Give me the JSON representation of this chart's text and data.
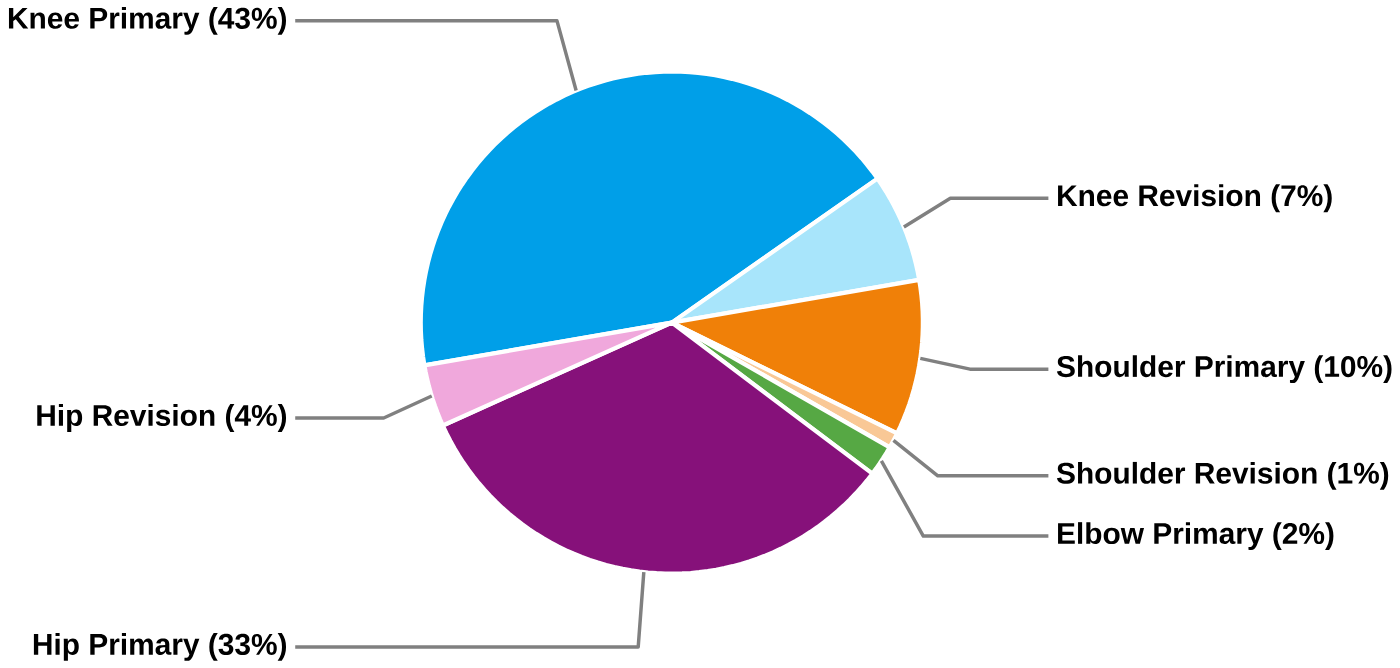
{
  "chart_data": {
    "type": "pie",
    "categories": [
      "Knee Primary (43%)",
      "Knee Revision (7%)",
      "Shoulder Primary (10%)",
      "Shoulder Revision (1%)",
      "Elbow Primary (2%)",
      "Hip Primary (33%)",
      "Hip Revision (4%)"
    ],
    "values": [
      43,
      7,
      10,
      1,
      2,
      33,
      4
    ],
    "colors": [
      "#009fe8",
      "#a8e5fb",
      "#f08008",
      "#f9c896",
      "#56a844",
      "#86117a",
      "#f0a8dc"
    ]
  }
}
